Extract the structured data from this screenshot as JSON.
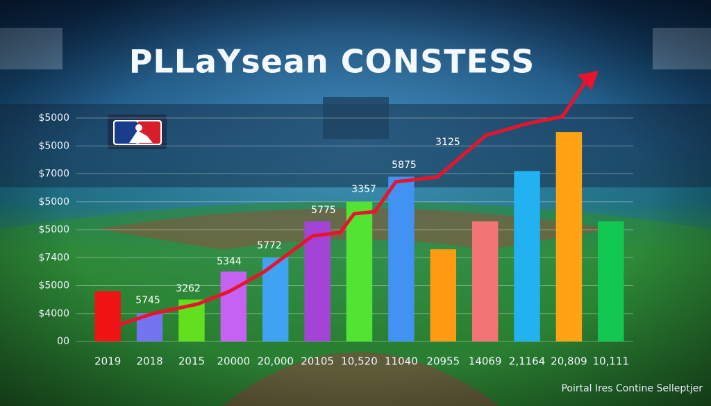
{
  "chart_data": {
    "type": "bar",
    "title": "PLLaYsean CONSTESS",
    "footer": "Poirtal Ires Contine Selleptjer",
    "categories": [
      "2019",
      "2018",
      "2015",
      "20000",
      "20,000",
      "20105",
      "10,520",
      "11040",
      "20955",
      "14069",
      "2,1164",
      "20,809",
      "10,111"
    ],
    "values": [
      1.8,
      1.0,
      1.5,
      2.5,
      3.0,
      4.3,
      5.0,
      5.9,
      3.3,
      4.3,
      6.1,
      7.5,
      4.3
    ],
    "colors": [
      "#f01414",
      "#7474f0",
      "#62e01e",
      "#c562f2",
      "#3fa2f2",
      "#a444d6",
      "#52e432",
      "#4192f2",
      "#ff9a12",
      "#f27474",
      "#22b2f2",
      "#ffa314",
      "#12c852"
    ],
    "annotations": [
      "5745",
      "3262",
      "5344",
      "5772",
      "5775",
      "3357",
      "5875",
      "3125"
    ],
    "ylim": [
      0,
      8
    ],
    "yticks": [
      {
        "value": 0,
        "label": "00"
      },
      {
        "value": 1,
        "label": "$4000"
      },
      {
        "value": 2,
        "label": "$5000"
      },
      {
        "value": 3,
        "label": "$7400"
      },
      {
        "value": 4,
        "label": "$5000"
      },
      {
        "value": 5,
        "label": "$5000"
      },
      {
        "value": 6,
        "label": "$7000"
      },
      {
        "value": 7,
        "label": "$5000"
      },
      {
        "value": 8,
        "label": "$5000"
      }
    ],
    "grid": true
  }
}
